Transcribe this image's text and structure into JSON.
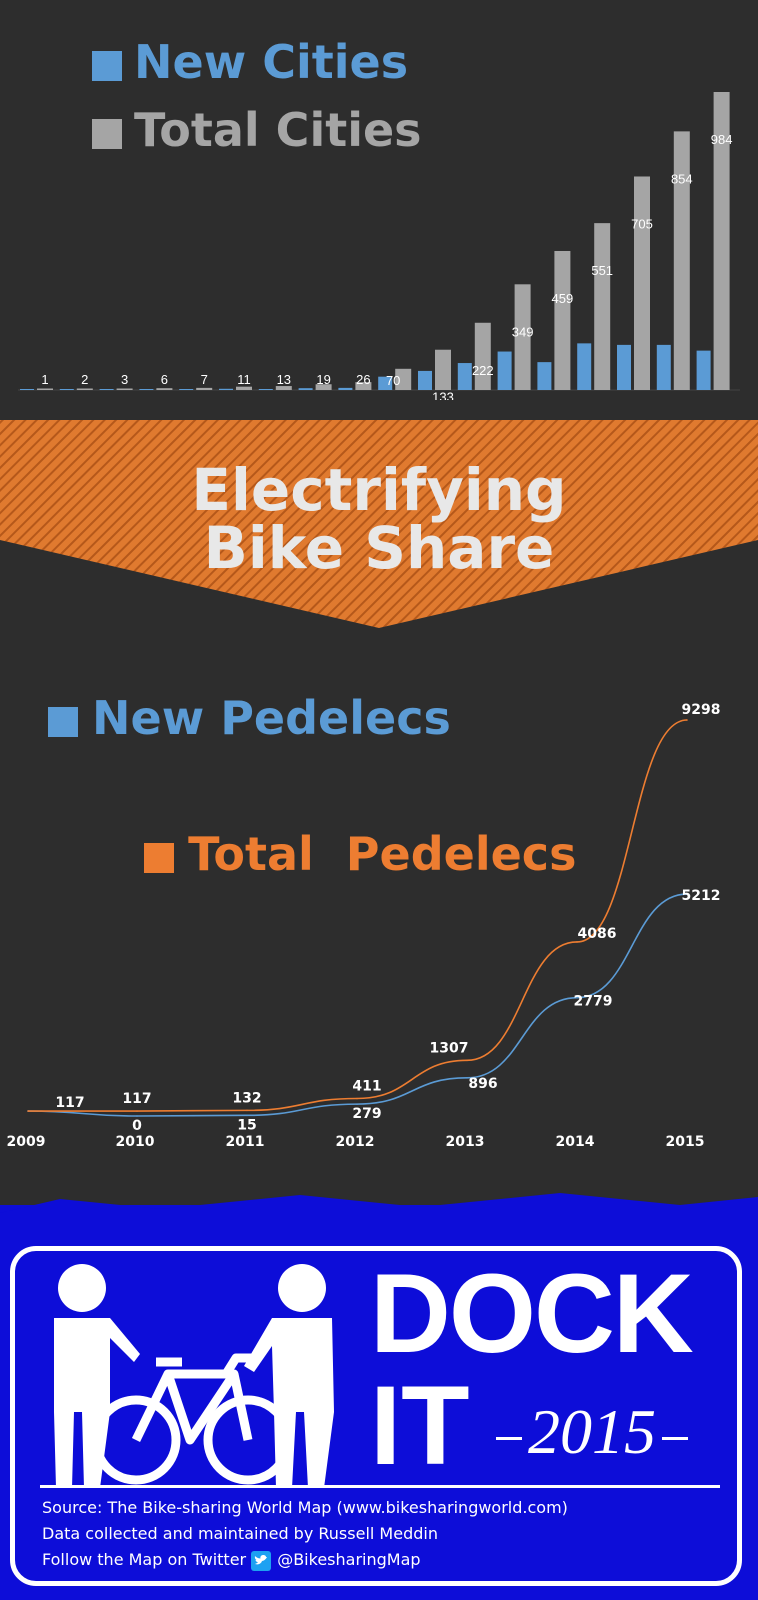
{
  "chart_data": [
    {
      "type": "bar",
      "categories": [
        "",
        "",
        "",
        "",
        "",
        "",
        "",
        "",
        "",
        "",
        "",
        "",
        "",
        "",
        "",
        "",
        "",
        ""
      ],
      "series": [
        {
          "name": "New Cities",
          "color": "#5b9bd5",
          "values": [
            1,
            1,
            1,
            3,
            1,
            4,
            2,
            6,
            7,
            44,
            63,
            89,
            127,
            92,
            154,
            149,
            149,
            130
          ]
        },
        {
          "name": "Total Cities",
          "color": "#a5a5a5",
          "values": [
            1,
            2,
            3,
            6,
            7,
            11,
            13,
            19,
            26,
            70,
            133,
            222,
            349,
            459,
            551,
            705,
            854,
            984
          ]
        }
      ],
      "data_labels": [
        "1",
        "2",
        "3",
        "6",
        "7",
        "11",
        "13",
        "19",
        "26",
        "70",
        "133",
        "222",
        "349",
        "459",
        "551",
        "705",
        "854",
        "984"
      ],
      "ylim": [
        0,
        984
      ],
      "legend": "top-left"
    },
    {
      "type": "line",
      "x": [
        "2009",
        "2010",
        "2011",
        "2012",
        "2013",
        "2014",
        "2015"
      ],
      "series": [
        {
          "name": "New Pedelecs",
          "color": "#5b9bd5",
          "values": [
            117,
            0,
            15,
            279,
            896,
            2779,
            5212
          ],
          "labels": [
            "117",
            "0",
            "15",
            "279",
            "896",
            "2779",
            "5212"
          ]
        },
        {
          "name": "Total  Pedelecs",
          "color": "#ed7d31",
          "values": [
            117,
            117,
            132,
            411,
            1307,
            4086,
            9298
          ],
          "labels": [
            "",
            "117",
            "132",
            "411",
            "1307",
            "4086",
            "9298"
          ]
        }
      ],
      "grid": false,
      "legend": "top-left"
    }
  ],
  "banner": {
    "title_line1": "Electrifying",
    "title_line2": "Bike Share",
    "color": "#e07a2f"
  },
  "footer": {
    "sign_line1": "DOCK",
    "sign_line2": "IT",
    "year": "2015",
    "source": "Source: The Bike-sharing World Map (www.bikesharingworld.com)",
    "credit": "Data collected and maintained by Russell Meddin",
    "follow": "Follow the Map on Twitter",
    "handle": "@BikesharingMap",
    "background": "#0d0dd8",
    "icons": [
      "pedestrian-icon",
      "person-with-bicycle-icon",
      "twitter-icon"
    ]
  }
}
